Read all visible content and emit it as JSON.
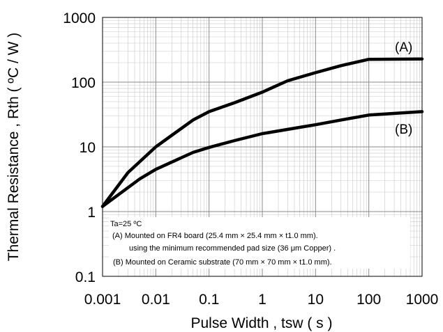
{
  "chart_data": {
    "type": "line",
    "xlabel": "Pulse Width , tsw ( s )",
    "ylabel": "Thermal Resistance , Rth ( ºC / W )",
    "xscale": "log",
    "yscale": "log",
    "xlim": [
      0.001,
      1000
    ],
    "ylim": [
      0.1,
      1000
    ],
    "grid": true,
    "x_ticks": [
      "0.001",
      "0.01",
      "0.1",
      "1",
      "10",
      "100",
      "1000"
    ],
    "y_ticks": [
      "0.1",
      "1",
      "10",
      "100",
      "1000"
    ],
    "series": [
      {
        "name": "(A)",
        "color": "#000000",
        "points": [
          [
            0.001,
            1.2
          ],
          [
            0.003,
            4.0
          ],
          [
            0.01,
            10
          ],
          [
            0.05,
            26
          ],
          [
            0.1,
            35
          ],
          [
            0.3,
            48
          ],
          [
            1,
            70
          ],
          [
            3,
            105
          ],
          [
            10,
            140
          ],
          [
            30,
            180
          ],
          [
            100,
            225
          ],
          [
            1000,
            228
          ]
        ]
      },
      {
        "name": "(B)",
        "color": "#000000",
        "points": [
          [
            0.001,
            1.2
          ],
          [
            0.005,
            3.2
          ],
          [
            0.01,
            4.5
          ],
          [
            0.05,
            8.2
          ],
          [
            0.1,
            9.8
          ],
          [
            0.3,
            12.5
          ],
          [
            1,
            16
          ],
          [
            5,
            20
          ],
          [
            10,
            22
          ],
          [
            30,
            26
          ],
          [
            100,
            31
          ],
          [
            1000,
            35
          ]
        ]
      }
    ],
    "annotations": [
      "Ta=25 ºC",
      "(A) Mounted on FR4 board (25.4 mm × 25.4 mm × t1.0 mm).",
      "using the minimum recommended pad size (36 μm Copper) .",
      "(B) Mounted on Ceramic substrate (70 mm × 70 mm × t1.0 mm)."
    ]
  }
}
